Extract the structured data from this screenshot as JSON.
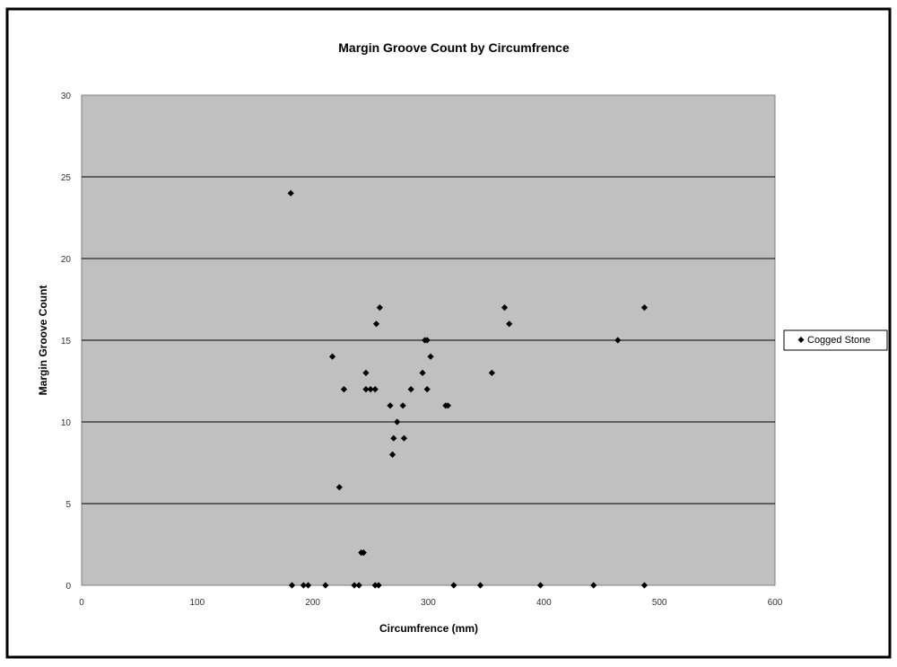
{
  "chart_data": {
    "type": "scatter",
    "title": "Margin Groove Count by Circumfrence",
    "xlabel": "Circumfrence (mm)",
    "ylabel": "Margin Groove Count",
    "xlim": [
      0,
      600
    ],
    "ylim": [
      0,
      30
    ],
    "xticks": [
      0,
      100,
      200,
      300,
      400,
      500,
      600
    ],
    "yticks": [
      0,
      5,
      10,
      15,
      20,
      25,
      30
    ],
    "grid": "horizontal",
    "legend_position": "right",
    "colors": {
      "plot_background": "#c0c0c0",
      "gridline": "#000000",
      "marker": "#000000",
      "frame": "#000000"
    },
    "series": [
      {
        "name": "Cogged Stone",
        "marker": "diamond",
        "points": [
          [
            181,
            24
          ],
          [
            217,
            14
          ],
          [
            223,
            6
          ],
          [
            227,
            12
          ],
          [
            242,
            2
          ],
          [
            244,
            2
          ],
          [
            246,
            13
          ],
          [
            246,
            12
          ],
          [
            250,
            12
          ],
          [
            254,
            12
          ],
          [
            255,
            16
          ],
          [
            258,
            17
          ],
          [
            267,
            11
          ],
          [
            269,
            8
          ],
          [
            270,
            9
          ],
          [
            273,
            10
          ],
          [
            278,
            11
          ],
          [
            279,
            9
          ],
          [
            285,
            12
          ],
          [
            295,
            13
          ],
          [
            297,
            15
          ],
          [
            299,
            15
          ],
          [
            299,
            12
          ],
          [
            302,
            14
          ],
          [
            315,
            11
          ],
          [
            317,
            11
          ],
          [
            355,
            13
          ],
          [
            366,
            17
          ],
          [
            370,
            16
          ],
          [
            464,
            15
          ],
          [
            487,
            17
          ],
          [
            182,
            0
          ],
          [
            192,
            0
          ],
          [
            196,
            0
          ],
          [
            211,
            0
          ],
          [
            236,
            0
          ],
          [
            240,
            0
          ],
          [
            254,
            0
          ],
          [
            257,
            0
          ],
          [
            322,
            0
          ],
          [
            345,
            0
          ],
          [
            397,
            0
          ],
          [
            443,
            0
          ],
          [
            487,
            0
          ]
        ]
      }
    ]
  }
}
